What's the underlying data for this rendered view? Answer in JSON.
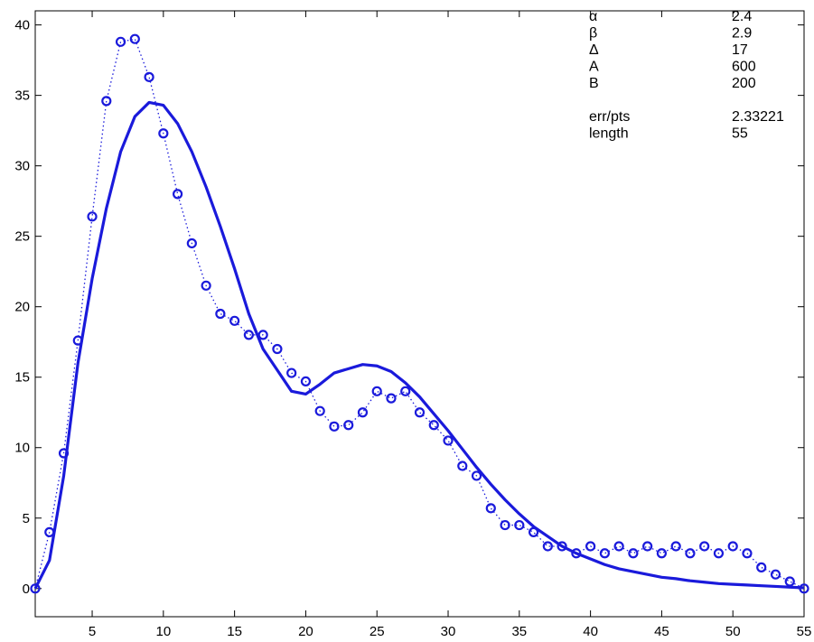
{
  "chart_data": {
    "type": "line",
    "title": "",
    "xlabel": "",
    "ylabel": "",
    "xlim": [
      1,
      55
    ],
    "ylim": [
      -2,
      41
    ],
    "xticks": [
      5,
      10,
      15,
      20,
      25,
      30,
      35,
      40,
      45,
      50,
      55
    ],
    "yticks": [
      0,
      5,
      10,
      15,
      20,
      25,
      30,
      35,
      40
    ],
    "grid": false,
    "colors": {
      "series": "#1a1adb",
      "axes": "#000000",
      "background": "#ffffff"
    },
    "series": [
      {
        "style": "dotted-line-circle-markers",
        "x": [
          1,
          2,
          3,
          4,
          5,
          6,
          7,
          8,
          9,
          10,
          11,
          12,
          13,
          14,
          15,
          16,
          17,
          18,
          19,
          20,
          21,
          22,
          23,
          24,
          25,
          26,
          27,
          28,
          29,
          30,
          31,
          32,
          33,
          34,
          35,
          36,
          37,
          38,
          39,
          40,
          41,
          42,
          43,
          44,
          45,
          46,
          47,
          48,
          49,
          50,
          51,
          52,
          53,
          54,
          55
        ],
        "y": [
          0,
          4,
          9.6,
          17.6,
          26.4,
          34.6,
          38.8,
          39,
          36.3,
          32.3,
          28,
          24.5,
          21.5,
          19.5,
          19,
          18,
          18,
          17,
          15.3,
          14.7,
          12.6,
          11.5,
          11.6,
          12.5,
          14,
          13.5,
          14,
          12.5,
          11.6,
          10.5,
          8.7,
          8,
          5.7,
          4.5,
          4.5,
          4,
          3,
          3,
          2.5,
          3,
          2.5,
          3,
          2.5,
          3,
          2.5,
          3,
          2.5,
          3,
          2.5,
          3,
          2.5,
          1.5,
          1,
          0.5,
          0
        ]
      },
      {
        "style": "solid-thick-line",
        "x": [
          1,
          2,
          3,
          4,
          5,
          6,
          7,
          8,
          9,
          10,
          11,
          12,
          13,
          14,
          15,
          16,
          17,
          18,
          19,
          20,
          21,
          22,
          23,
          24,
          25,
          26,
          27,
          28,
          29,
          30,
          31,
          32,
          33,
          34,
          35,
          36,
          37,
          38,
          39,
          40,
          41,
          42,
          43,
          44,
          45,
          46,
          47,
          48,
          49,
          50,
          51,
          52,
          53,
          54,
          55
        ],
        "y": [
          0,
          2,
          8,
          16,
          22,
          27,
          31,
          33.5,
          34.5,
          34.3,
          33,
          31,
          28.5,
          25.7,
          22.7,
          19.5,
          17,
          15.5,
          14,
          13.8,
          14.5,
          15.3,
          15.6,
          15.9,
          15.8,
          15.4,
          14.6,
          13.6,
          12.4,
          11.2,
          9.9,
          8.6,
          7.4,
          6.3,
          5.3,
          4.4,
          3.7,
          3,
          2.5,
          2.1,
          1.7,
          1.4,
          1.2,
          1,
          0.8,
          0.7,
          0.55,
          0.45,
          0.35,
          0.3,
          0.25,
          0.2,
          0.15,
          0.1,
          0.05
        ]
      }
    ],
    "annotation_table": [
      {
        "label": "α",
        "value": "2.4"
      },
      {
        "label": "β",
        "value": "2.9"
      },
      {
        "label": "Δ",
        "value": "17"
      },
      {
        "label": "A",
        "value": "600"
      },
      {
        "label": "B",
        "value": "200"
      },
      {
        "label": "",
        "value": ""
      },
      {
        "label": "err/pts",
        "value": "2.33221"
      },
      {
        "label": "length",
        "value": "55"
      }
    ]
  }
}
